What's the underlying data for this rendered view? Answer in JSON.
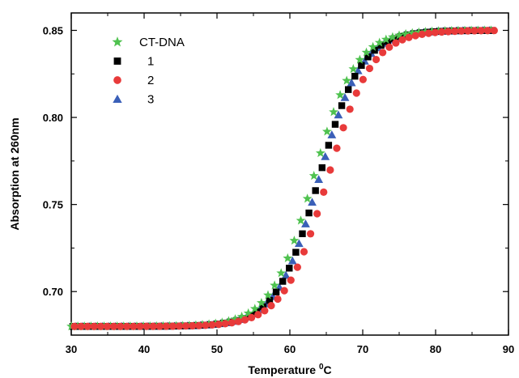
{
  "chart_data": {
    "type": "scatter",
    "title": "",
    "xlabel": "Temperature",
    "xlabel_unit_sup": "0",
    "xlabel_unit": "C",
    "ylabel": "Absorption at 260nm",
    "xlim": [
      30,
      90
    ],
    "ylim": [
      0.675,
      0.86
    ],
    "x_ticks": [
      "30",
      "40",
      "50",
      "60",
      "70",
      "80",
      "90"
    ],
    "y_ticks": [
      "0.70",
      "0.75",
      "0.80",
      "0.85"
    ],
    "grid": false,
    "legend_position": "top-left",
    "series": [
      {
        "name": "CT-DNA",
        "marker": "star",
        "color": "#4fc24f",
        "Tm": 63.2,
        "width": 2.9
      },
      {
        "name": "1",
        "marker": "square",
        "color": "#000000",
        "Tm": 64.0,
        "width": 2.9
      },
      {
        "name": "2",
        "marker": "circle",
        "color": "#e83a3a",
        "Tm": 65.2,
        "width": 3.0
      },
      {
        "name": "3",
        "marker": "triangle",
        "color": "#3a5fb8",
        "Tm": 64.0,
        "width": 2.9
      }
    ],
    "baseline": 0.68,
    "plateau": 0.85,
    "x_step": 0.9
  }
}
